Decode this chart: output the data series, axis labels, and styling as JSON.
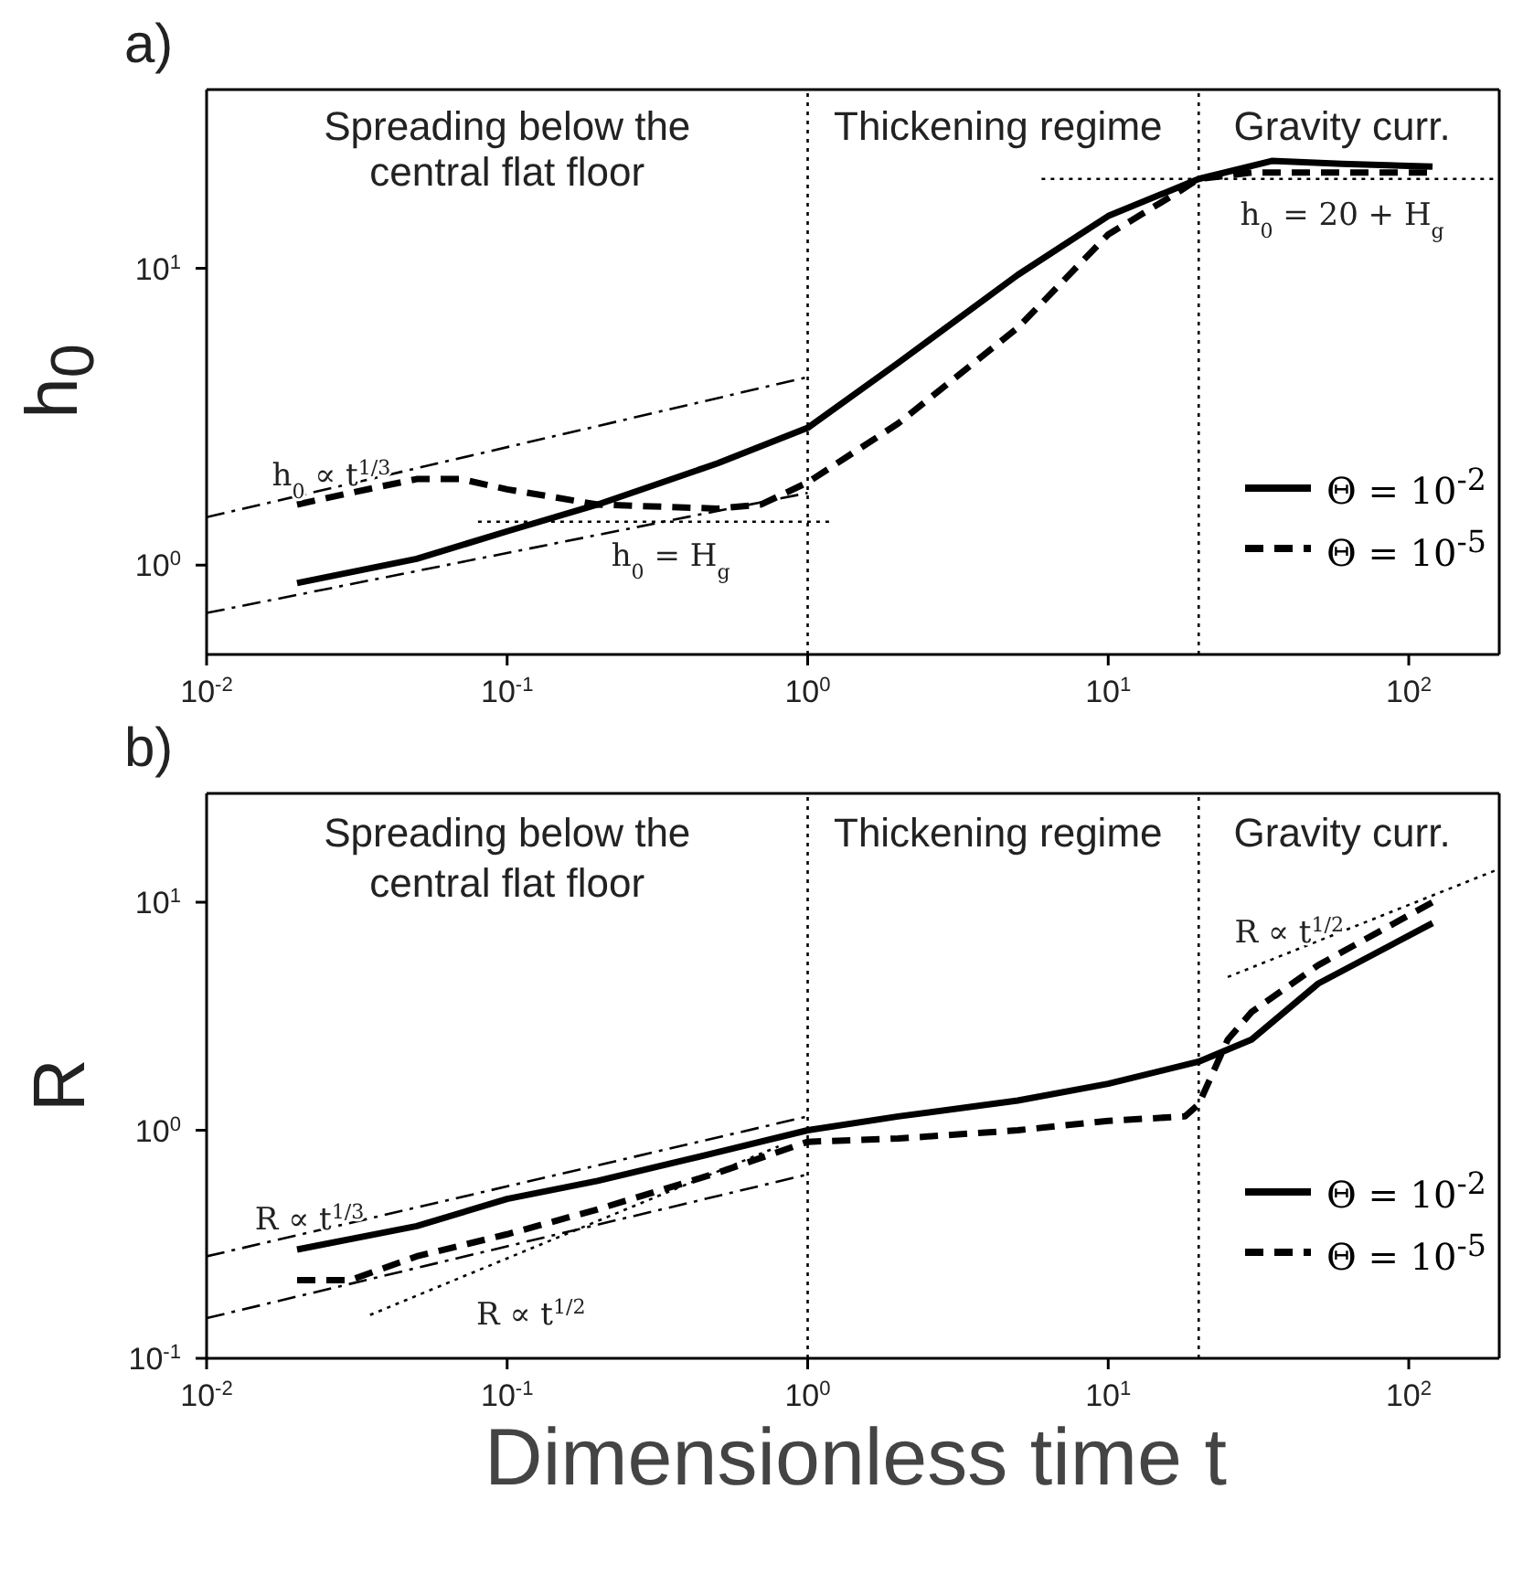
{
  "chart_data": [
    {
      "type": "line",
      "title": "a)",
      "ylabel": "h$_{0}$",
      "log": "xy",
      "grid": false,
      "legend": "bottom right",
      "xlim": [
        0.01,
        200
      ],
      "xticks": [
        {
          "value": 0.01,
          "label": "10$^{-2}$"
        },
        {
          "value": 0.1,
          "label": "10$^{-1}$"
        },
        {
          "value": 1,
          "label": "10$^{0}$"
        },
        {
          "value": 10,
          "label": "10$^{1}$"
        },
        {
          "value": 100,
          "label": "10$^{2}$"
        }
      ],
      "ylim": [
        0.5,
        40
      ],
      "yticks": [
        {
          "value": 1,
          "label": "10$^{0}$"
        },
        {
          "value": 10,
          "label": "10$^{1}$"
        }
      ],
      "series": [
        {
          "name": "Θ = 10$^{-2}$",
          "color": "#000000",
          "line_style": "solid",
          "x": [
            0.02,
            0.05,
            0.1,
            0.2,
            0.5,
            1,
            2,
            5,
            10,
            20,
            35,
            60,
            120
          ],
          "values": [
            0.87,
            1.05,
            1.3,
            1.6,
            2.2,
            2.9,
            4.8,
            9.5,
            15,
            20,
            23,
            22.5,
            22
          ]
        },
        {
          "name": "Θ = 10$^{-5}$",
          "color": "#000000",
          "line_style": "dashed",
          "x": [
            0.02,
            0.03,
            0.05,
            0.07,
            0.1,
            0.2,
            0.5,
            0.7,
            1,
            2,
            5,
            10,
            17,
            20,
            30,
            60,
            120
          ],
          "values": [
            1.6,
            1.75,
            1.95,
            1.95,
            1.8,
            1.6,
            1.55,
            1.6,
            1.9,
            3.0,
            6.3,
            13,
            18,
            20,
            21,
            21,
            21
          ]
        },
        {
          "color": "#000000",
          "line_style": "dashdot",
          "x": [
            0.01,
            1
          ],
          "values": [
            1.45,
            4.3
          ]
        },
        {
          "color": "#000000",
          "line_style": "dashdot",
          "x": [
            0.01,
            1
          ],
          "values": [
            0.69,
            1.75
          ]
        },
        {
          "color": "#000000",
          "line_style": "dotted",
          "x": [
            0.08,
            1.2
          ],
          "values": [
            1.4,
            1.4
          ]
        },
        {
          "color": "#000000",
          "line_style": "dotted",
          "x": [
            6,
            200
          ],
          "values": [
            20,
            20
          ]
        }
      ],
      "ref_lines": [
        {
          "axis": "x",
          "value": 1,
          "line_style": "dotted",
          "color": "#000000"
        },
        {
          "axis": "x",
          "value": 20,
          "line_style": "dotted",
          "color": "#000000"
        }
      ],
      "annotations": [
        "Spreading below the",
        "central flat floor",
        "Thickening regime",
        "Gravity curr.",
        "h$_{0}$ ∝ t$^{1/3}$",
        "h$_{0}$ = H$_{g}$",
        "h$_{0}$ = 20 + H$_{g}$"
      ]
    },
    {
      "type": "line",
      "title": "b)",
      "ylabel": "R",
      "xlabel": "Dimensionless time t",
      "log": "xy",
      "grid": false,
      "legend": "bottom right",
      "xlim": [
        0.01,
        200
      ],
      "xticks": [
        {
          "value": 0.01,
          "label": "10$^{-2}$"
        },
        {
          "value": 0.1,
          "label": "10$^{-1}$"
        },
        {
          "value": 1,
          "label": "10$^{0}$"
        },
        {
          "value": 10,
          "label": "10$^{1}$"
        },
        {
          "value": 100,
          "label": "10$^{2}$"
        }
      ],
      "ylim": [
        0.1,
        30
      ],
      "yticks": [
        {
          "value": 0.1,
          "label": "10$^{-1}$"
        },
        {
          "value": 1,
          "label": "10$^{0}$"
        },
        {
          "value": 10,
          "label": "10$^{1}$"
        }
      ],
      "series": [
        {
          "name": "Θ = 10$^{-2}$",
          "color": "#000000",
          "line_style": "solid",
          "x": [
            0.02,
            0.05,
            0.1,
            0.2,
            0.5,
            1,
            2,
            5,
            10,
            20,
            30,
            50,
            120
          ],
          "values": [
            0.3,
            0.38,
            0.5,
            0.6,
            0.8,
            1.0,
            1.15,
            1.35,
            1.6,
            2.0,
            2.5,
            4.4,
            8.1
          ]
        },
        {
          "name": "Θ = 10$^{-5}$",
          "color": "#000000",
          "line_style": "dashed",
          "x": [
            0.02,
            0.03,
            0.05,
            0.1,
            0.2,
            0.5,
            1,
            2,
            5,
            10,
            18,
            20,
            25,
            30,
            50,
            120
          ],
          "values": [
            0.22,
            0.22,
            0.28,
            0.35,
            0.45,
            0.65,
            0.89,
            0.92,
            1.0,
            1.1,
            1.15,
            1.3,
            2.5,
            3.3,
            5.3,
            10
          ]
        },
        {
          "color": "#000000",
          "line_style": "dashdot",
          "x": [
            0.01,
            1
          ],
          "values": [
            0.28,
            1.15
          ]
        },
        {
          "color": "#000000",
          "line_style": "dashdot",
          "x": [
            0.01,
            1
          ],
          "values": [
            0.15,
            0.64
          ]
        },
        {
          "color": "#000000",
          "line_style": "dotted",
          "x": [
            0.035,
            0.8
          ],
          "values": [
            0.155,
            0.85
          ]
        },
        {
          "color": "#000000",
          "line_style": "dotted",
          "x": [
            25,
            200
          ],
          "values": [
            4.7,
            14
          ]
        }
      ],
      "ref_lines": [
        {
          "axis": "x",
          "value": 1,
          "line_style": "dotted",
          "color": "#000000"
        },
        {
          "axis": "x",
          "value": 20,
          "line_style": "dotted",
          "color": "#000000"
        }
      ],
      "annotations": [
        "Spreading below the",
        "central flat floor",
        "Thickening regime",
        "Gravity curr.",
        "R ∝ t$^{1/3}$",
        "R ∝ t$^{1/2}$",
        "R ∝ t$^{1/2}$"
      ]
    }
  ]
}
